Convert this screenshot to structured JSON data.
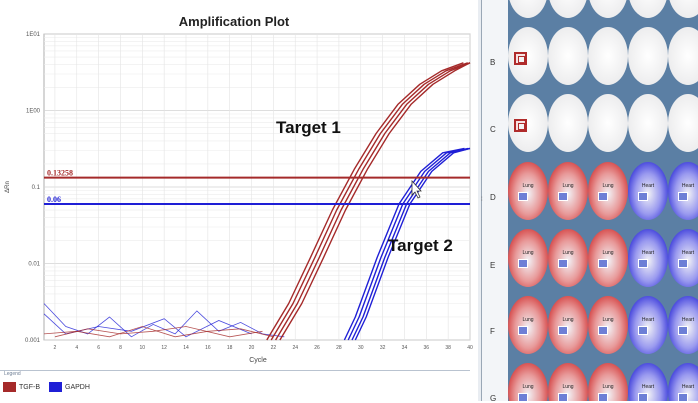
{
  "plot": {
    "title": "Amplification Plot",
    "ylabel": "ΔRn",
    "xlabel": "Cycle",
    "y_ticks": [
      "1E01",
      "1E00",
      "0.1",
      "0.01",
      "0.001"
    ],
    "x_ticks": [
      "2",
      "4",
      "6",
      "8",
      "10",
      "12",
      "14",
      "16",
      "18",
      "20",
      "22",
      "24",
      "26",
      "28",
      "30",
      "32",
      "34",
      "36",
      "38",
      "40"
    ],
    "thresholds": [
      {
        "label": "0.13258",
        "value": 0.13258,
        "color": "#a52a2a"
      },
      {
        "label": "0.06",
        "value": 0.06,
        "color": "#1f1fd6"
      }
    ],
    "annotations": [
      "Target 1",
      "Target 2"
    ]
  },
  "legend": {
    "title": "Legend",
    "items": [
      {
        "label": "TGF-B",
        "color": "#a52a2a"
      },
      {
        "label": "GAPDH",
        "color": "#1f1fd6"
      }
    ]
  },
  "plate": {
    "rows": [
      "B",
      "C",
      "D",
      "E",
      "F",
      "G"
    ],
    "lung_label": "Lung",
    "heart_label": "Heart"
  },
  "chart_data": {
    "type": "line",
    "title": "Amplification Plot",
    "xlabel": "Cycle",
    "ylabel": "ΔRn",
    "xlim": [
      1,
      40
    ],
    "ylim": [
      0.001,
      10
    ],
    "y_scale": "log",
    "grid": true,
    "legend_position": "bottom",
    "thresholds": [
      0.13258,
      0.06
    ],
    "series": [
      {
        "name": "TGF-B",
        "color": "#a52a2a",
        "x": [
          22,
          24,
          26,
          28,
          30,
          32,
          34,
          36,
          38,
          40
        ],
        "y": [
          0.001,
          0.003,
          0.012,
          0.05,
          0.17,
          0.5,
          1.2,
          2.2,
          3.3,
          4.2
        ]
      },
      {
        "name": "GAPDH",
        "color": "#1f1fd6",
        "x": [
          29,
          30,
          32,
          34,
          36,
          38,
          40
        ],
        "y": [
          0.001,
          0.002,
          0.012,
          0.06,
          0.16,
          0.28,
          0.32
        ]
      }
    ]
  }
}
